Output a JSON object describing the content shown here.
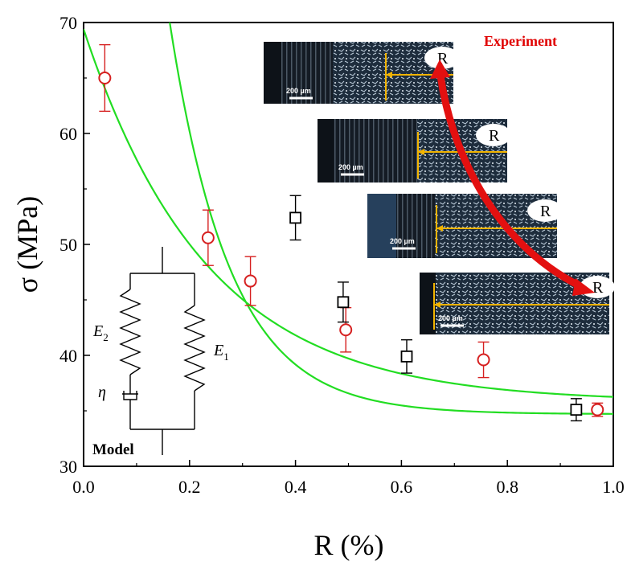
{
  "chart_data": {
    "type": "scatter",
    "xlabel": "R (%)",
    "ylabel": "σ (MPa)",
    "xlim": [
      0.0,
      1.0
    ],
    "ylim": [
      30,
      70
    ],
    "x_ticks": [
      "0.0",
      "0.2",
      "0.4",
      "0.6",
      "0.8",
      "1.0"
    ],
    "y_ticks": [
      "30",
      "40",
      "50",
      "60",
      "70"
    ],
    "series": [
      {
        "marker": "circle",
        "color": "#d62020",
        "points": [
          {
            "x": 0.04,
            "y": 65.0,
            "err": 3.0
          },
          {
            "x": 0.235,
            "y": 50.6,
            "err": 2.5
          },
          {
            "x": 0.315,
            "y": 46.7,
            "err": 2.2
          },
          {
            "x": 0.495,
            "y": 42.3,
            "err": 2.0
          },
          {
            "x": 0.755,
            "y": 39.6,
            "err": 1.6
          },
          {
            "x": 0.97,
            "y": 35.1,
            "err": 0.6
          }
        ]
      },
      {
        "marker": "square",
        "color": "#000000",
        "points": [
          {
            "x": 0.4,
            "y": 52.4,
            "err": 2.0
          },
          {
            "x": 0.49,
            "y": 44.8,
            "err": 1.8
          },
          {
            "x": 0.61,
            "y": 39.9,
            "err": 1.5
          },
          {
            "x": 0.93,
            "y": 35.1,
            "err": 1.0
          }
        ]
      }
    ],
    "fit_curves": [
      {
        "color": "#22dd22",
        "model": "exponential",
        "a": 69.4,
        "b": 35.8,
        "k": 4.3
      },
      {
        "color": "#22dd22",
        "model": "exponential",
        "a": 180.0,
        "b": 34.7,
        "k": 8.7
      }
    ],
    "annotations": {
      "experiment": "Experiment",
      "model": "Model",
      "r_marker": "R",
      "scale_bar": "200 µm",
      "e1_symbol": "E",
      "e1_sub": "1",
      "e2_symbol": "E",
      "e2_sub": "2",
      "eta_symbol": "η"
    },
    "grid": false
  }
}
